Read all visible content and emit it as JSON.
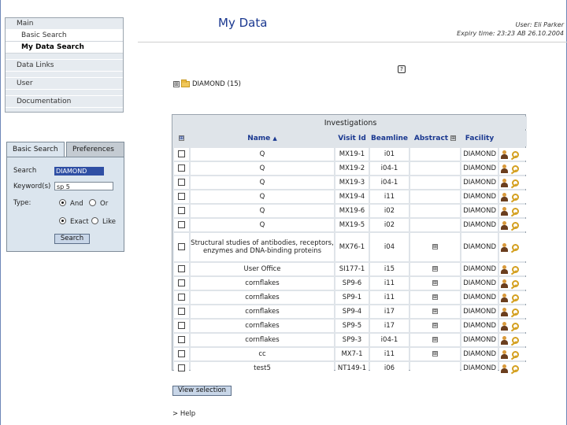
{
  "nav": {
    "main": "Main",
    "basic_search": "Basic Search",
    "my_data_search": "My Data Search",
    "data_links": "Data Links",
    "user": "User",
    "documentation": "Documentation"
  },
  "search": {
    "tab_basic": "Basic Search",
    "tab_preferences": "Preferences",
    "search_label": "Search",
    "search_value": "DIAMOND",
    "keywords_label": "Keyword(s)",
    "keywords_value": "sp 5",
    "type_label": "Type:",
    "and_label": "And",
    "or_label": "Or",
    "exact_label": "Exact",
    "like_label": "Like",
    "search_button": "Search"
  },
  "header": {
    "title": "My Data",
    "user_line": "User: Eli Parker",
    "expiry_line": "Expiry time: 23:23 AB 26.10.2004"
  },
  "tree": {
    "expand": "⊞",
    "label": "DIAMOND (15)"
  },
  "table": {
    "caption": "Investigations",
    "col_expand": "⊞",
    "col_name": "Name",
    "col_name_sort": "▲",
    "col_visit": "Visit Id",
    "col_beamline": "Beamline",
    "col_abstract": "Abstract",
    "col_abstract_toggle": "⊞",
    "col_facility": "Facility",
    "rows": [
      {
        "name": "Q",
        "visit": "MX19-1",
        "beamline": "i01",
        "abstract": "",
        "facility": "DIAMOND"
      },
      {
        "name": "Q",
        "visit": "MX19-2",
        "beamline": "i04-1",
        "abstract": "",
        "facility": "DIAMOND"
      },
      {
        "name": "Q",
        "visit": "MX19-3",
        "beamline": "i04-1",
        "abstract": "",
        "facility": "DIAMOND"
      },
      {
        "name": "Q",
        "visit": "MX19-4",
        "beamline": "i11",
        "abstract": "",
        "facility": "DIAMOND"
      },
      {
        "name": "Q",
        "visit": "MX19-6",
        "beamline": "i02",
        "abstract": "",
        "facility": "DIAMOND"
      },
      {
        "name": "Q",
        "visit": "MX19-5",
        "beamline": "i02",
        "abstract": "",
        "facility": "DIAMOND"
      },
      {
        "name": "Structural studies of antibodies, receptors, enzymes and DNA-binding proteins",
        "visit": "MX76-1",
        "beamline": "i04",
        "abstract": "⊞",
        "facility": "DIAMOND"
      },
      {
        "name": "User Office",
        "visit": "SI177-1",
        "beamline": "i15",
        "abstract": "⊞",
        "facility": "DIAMOND"
      },
      {
        "name": "cornflakes",
        "visit": "SP9-6",
        "beamline": "i11",
        "abstract": "⊞",
        "facility": "DIAMOND"
      },
      {
        "name": "cornflakes",
        "visit": "SP9-1",
        "beamline": "i11",
        "abstract": "⊞",
        "facility": "DIAMOND"
      },
      {
        "name": "cornflakes",
        "visit": "SP9-4",
        "beamline": "i17",
        "abstract": "⊞",
        "facility": "DIAMOND"
      },
      {
        "name": "cornflakes",
        "visit": "SP9-5",
        "beamline": "i17",
        "abstract": "⊞",
        "facility": "DIAMOND"
      },
      {
        "name": "cornflakes",
        "visit": "SP9-3",
        "beamline": "i04-1",
        "abstract": "⊞",
        "facility": "DIAMOND"
      },
      {
        "name": "cc",
        "visit": "MX7-1",
        "beamline": "i11",
        "abstract": "⊞",
        "facility": "DIAMOND"
      },
      {
        "name": "test5",
        "visit": "NT149-1",
        "beamline": "i06",
        "abstract": "",
        "facility": "DIAMOND"
      }
    ]
  },
  "actions": {
    "view_selection": "View selection",
    "help": "> Help"
  },
  "icons": {
    "help": "?",
    "investigator": "person-icon",
    "key": "key-icon",
    "folder": "folder-icon"
  },
  "colors": {
    "title_blue": "#1a3890",
    "selected_field": "#2f4fa4",
    "panel_bg": "#dbe5ee"
  }
}
